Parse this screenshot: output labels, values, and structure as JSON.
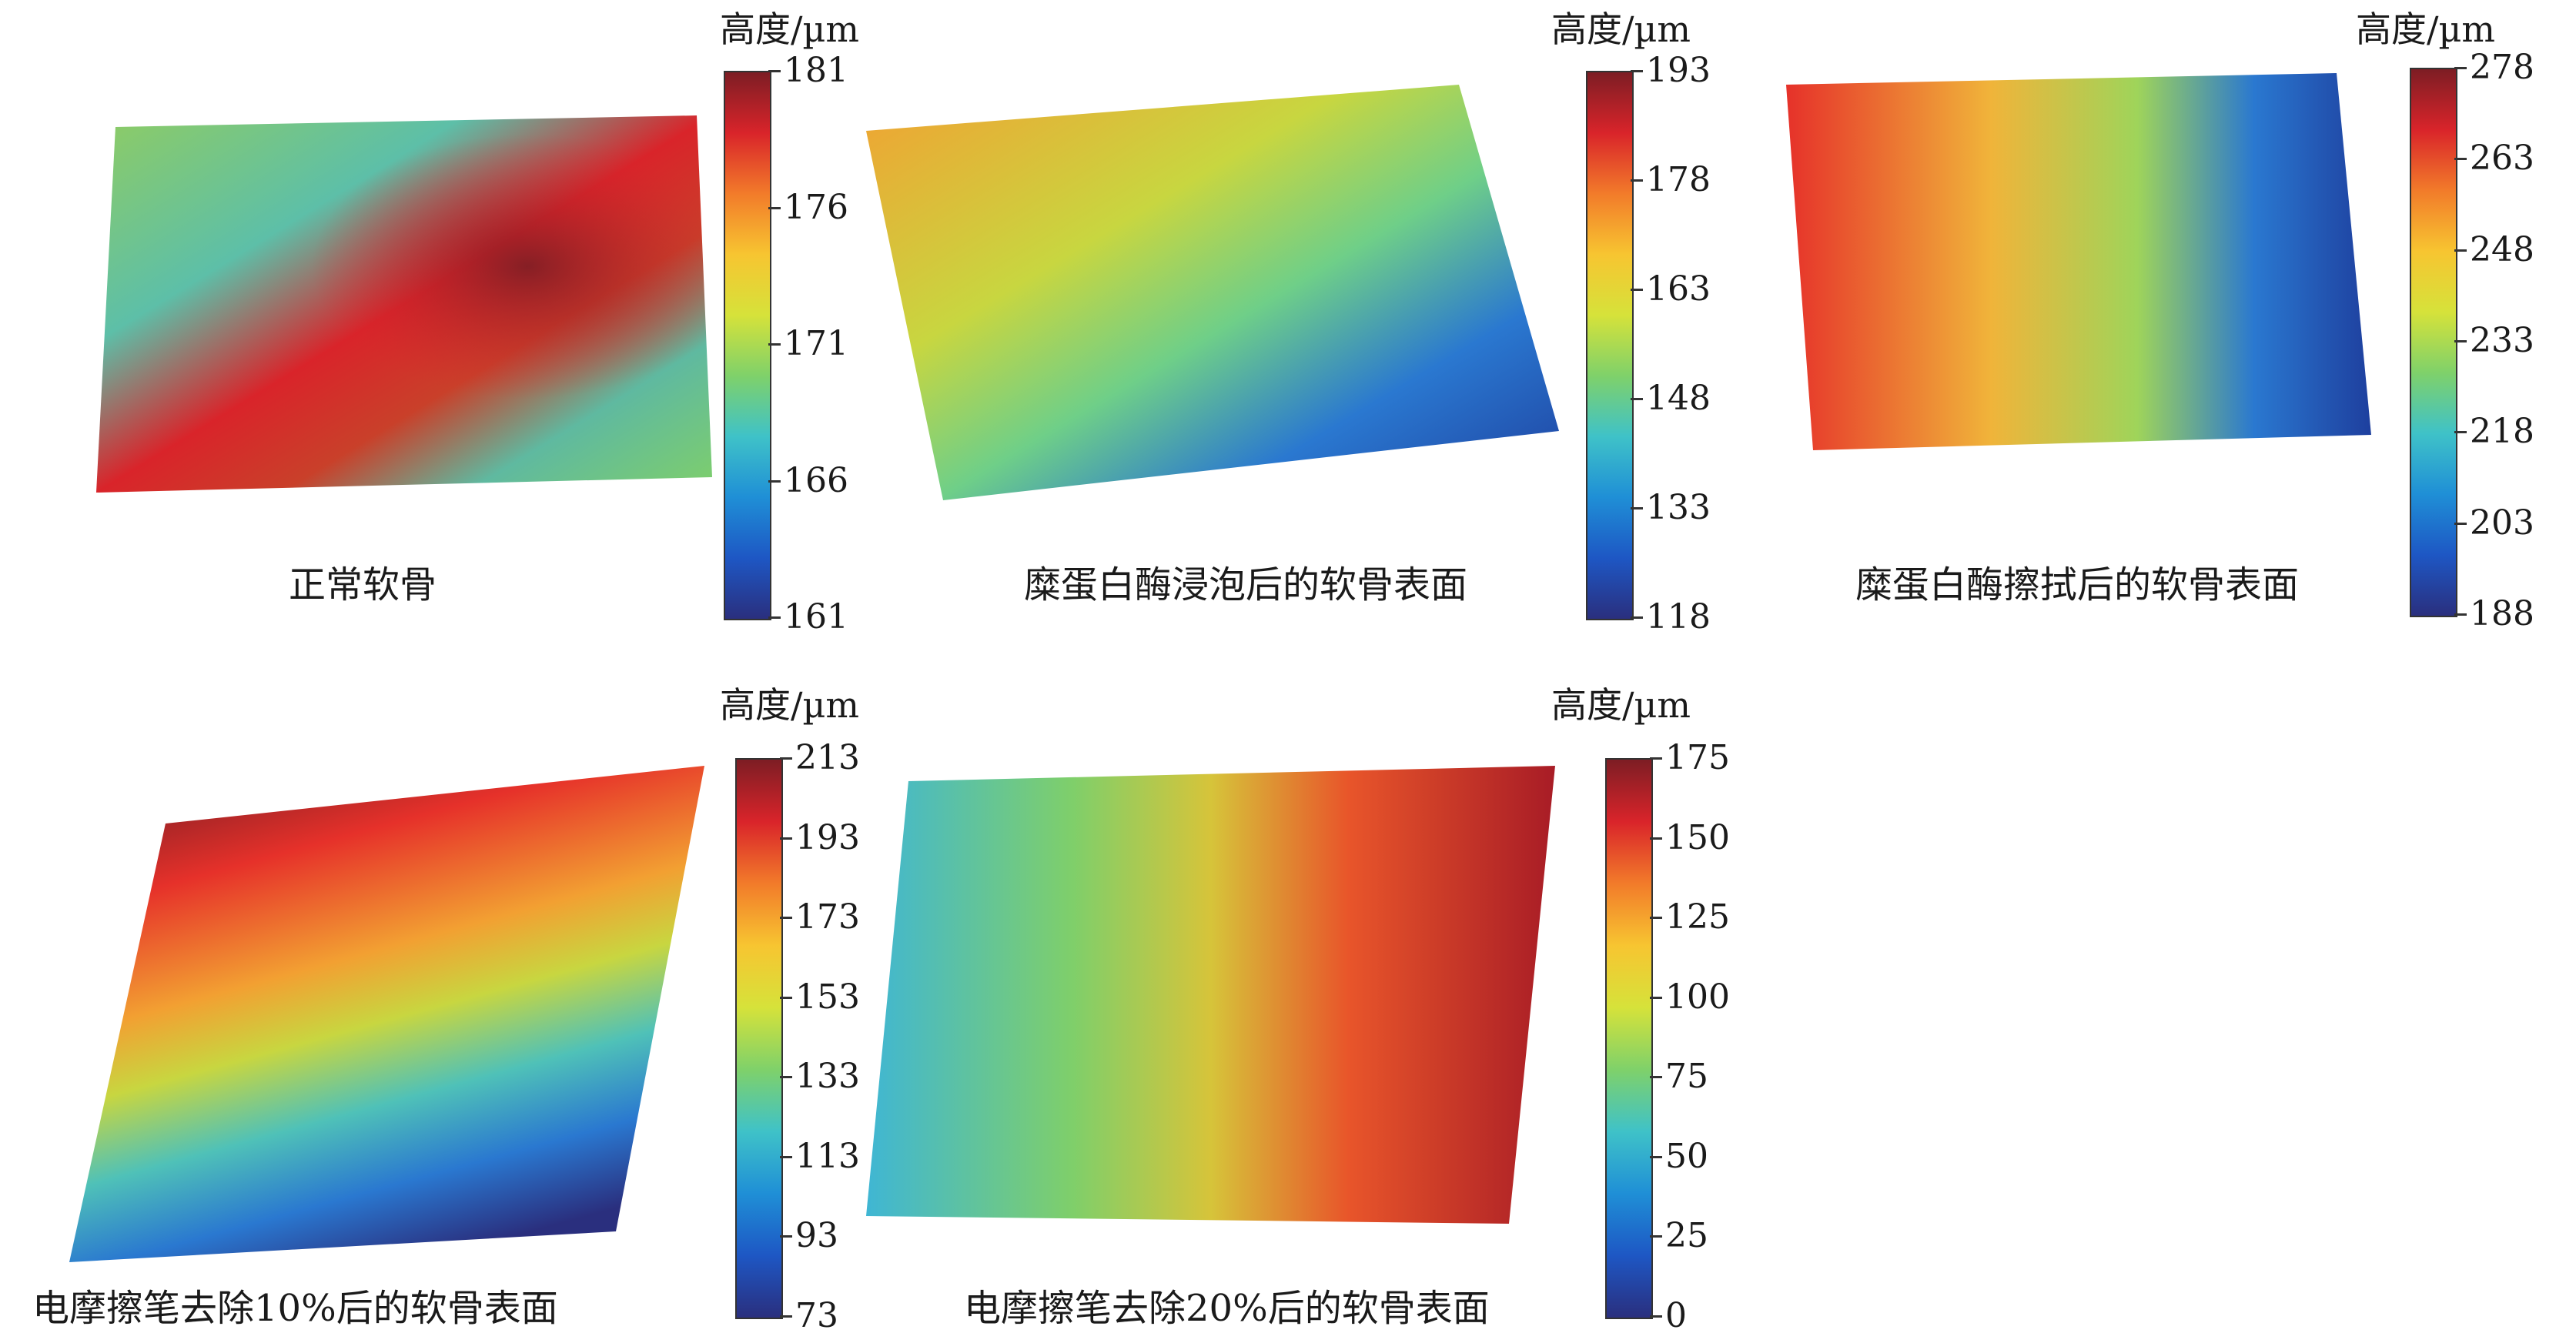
{
  "colormap": [
    "#2a2f7e",
    "#1e57c4",
    "#1f8fd6",
    "#3fc2c8",
    "#7fd16a",
    "#d6e23a",
    "#f7c531",
    "#f27b2a",
    "#d9242a",
    "#7d1d24"
  ],
  "panels": [
    {
      "caption": "正常软骨",
      "cb_title": "高度/µm",
      "ticks": [
        "181",
        "176",
        "171",
        "166",
        "161"
      ],
      "surface_colors": [
        "#6fc46a",
        "#d9242a",
        "#4fb6b0"
      ]
    },
    {
      "caption": "糜蛋白酶浸泡后的软骨表面",
      "cb_title": "高度/µm",
      "ticks": [
        "193",
        "178",
        "163",
        "148",
        "133",
        "118"
      ],
      "surface_colors": [
        "#f0a838",
        "#1e57c4",
        "#7fd16a"
      ]
    },
    {
      "caption": "糜蛋白酶擦拭后的软骨表面",
      "cb_title": "高度/µm",
      "ticks": [
        "278",
        "263",
        "248",
        "233",
        "218",
        "203",
        "188"
      ],
      "surface_colors": [
        "#d9242a",
        "#1e57c4",
        "#9fd45a"
      ]
    },
    {
      "caption": "电摩擦笔去除10%后的软骨表面",
      "cb_title": "高度/µm",
      "ticks": [
        "213",
        "193",
        "173",
        "153",
        "133",
        "113",
        "93",
        "73"
      ],
      "surface_colors": [
        "#7d1d24",
        "#d6e23a",
        "#2a2f7e"
      ]
    },
    {
      "caption": "电摩擦笔去除20%后的软骨表面",
      "cb_title": "高度/µm",
      "ticks": [
        "175",
        "150",
        "125",
        "100",
        "75",
        "50",
        "25",
        "0"
      ],
      "surface_colors": [
        "#3fc2c8",
        "#9fd45a",
        "#b81f2a"
      ]
    }
  ]
}
